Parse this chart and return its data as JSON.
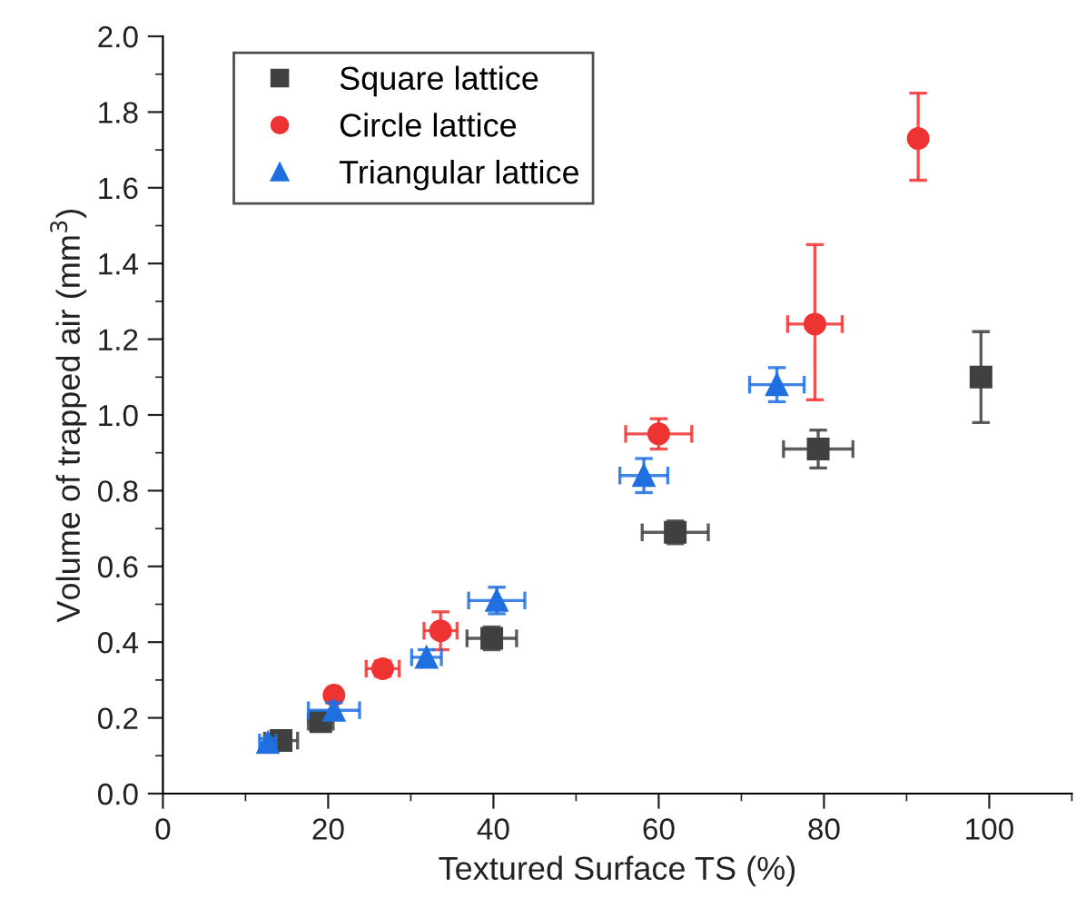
{
  "chart_data": {
    "type": "scatter",
    "xlabel": "Textured Surface TS (%)",
    "ylabel": "Volume of trapped air (mm$^{3}$)",
    "xlim": [
      0,
      110
    ],
    "xticks": [
      0,
      20,
      40,
      60,
      80,
      100
    ],
    "ylim": [
      0,
      2.0
    ],
    "yticks": [
      {
        "value": 0,
        "label": "0.0"
      },
      {
        "value": 0.2,
        "label": "0.2"
      },
      {
        "value": 0.4,
        "label": "0.4"
      },
      {
        "value": 0.6,
        "label": "0.6"
      },
      {
        "value": 0.8,
        "label": "0.8"
      },
      {
        "value": 1.0,
        "label": "1.0"
      },
      {
        "value": 1.2,
        "label": "1.2"
      },
      {
        "value": 1.4,
        "label": "1.4"
      },
      {
        "value": 1.6,
        "label": "1.6"
      },
      {
        "value": 1.8,
        "label": "1.8"
      },
      {
        "value": 2.0,
        "label": "2.0"
      }
    ],
    "grid": false,
    "legend": "top left",
    "series": [
      {
        "name": "Square lattice",
        "color": "#404040",
        "marker": "square",
        "x": [
          14.3,
          19.1,
          39.8,
          62,
          79.3,
          99
        ],
        "values": [
          0.14,
          0.19,
          0.41,
          0.69,
          0.91,
          1.1
        ],
        "errors": [
          0.02,
          0.02,
          0.03,
          0.03,
          0.05,
          0.12
        ],
        "xerrors": [
          2,
          1.5,
          3,
          4,
          4.2,
          null
        ]
      },
      {
        "name": "Circle lattice",
        "color": "#ee3333",
        "marker": "circle",
        "x": [
          20.7,
          26.6,
          33.6,
          60,
          78.9,
          91.4
        ],
        "values": [
          0.26,
          0.33,
          0.43,
          0.95,
          1.24,
          1.73
        ],
        "errors": [
          0.01,
          0.02,
          0.05,
          0.04,
          [
            1.04,
            1.45
          ],
          [
            1.62,
            1.85
          ]
        ],
        "xerrors": [
          null,
          2,
          2,
          4,
          3.3,
          null
        ]
      },
      {
        "name": "Triangular lattice",
        "color": "#1f6fe0",
        "marker": "triangle",
        "x": [
          12.7,
          20.7,
          31.9,
          40.4,
          58.2,
          74.3
        ],
        "values": [
          0.135,
          0.22,
          0.36,
          0.51,
          0.84,
          1.08
        ],
        "errors": [
          0.01,
          0.02,
          0.02,
          0.035,
          0.045,
          0.045
        ],
        "xerrors": [
          1,
          3.1,
          1.8,
          3.4,
          2.9,
          3.3
        ]
      }
    ]
  }
}
